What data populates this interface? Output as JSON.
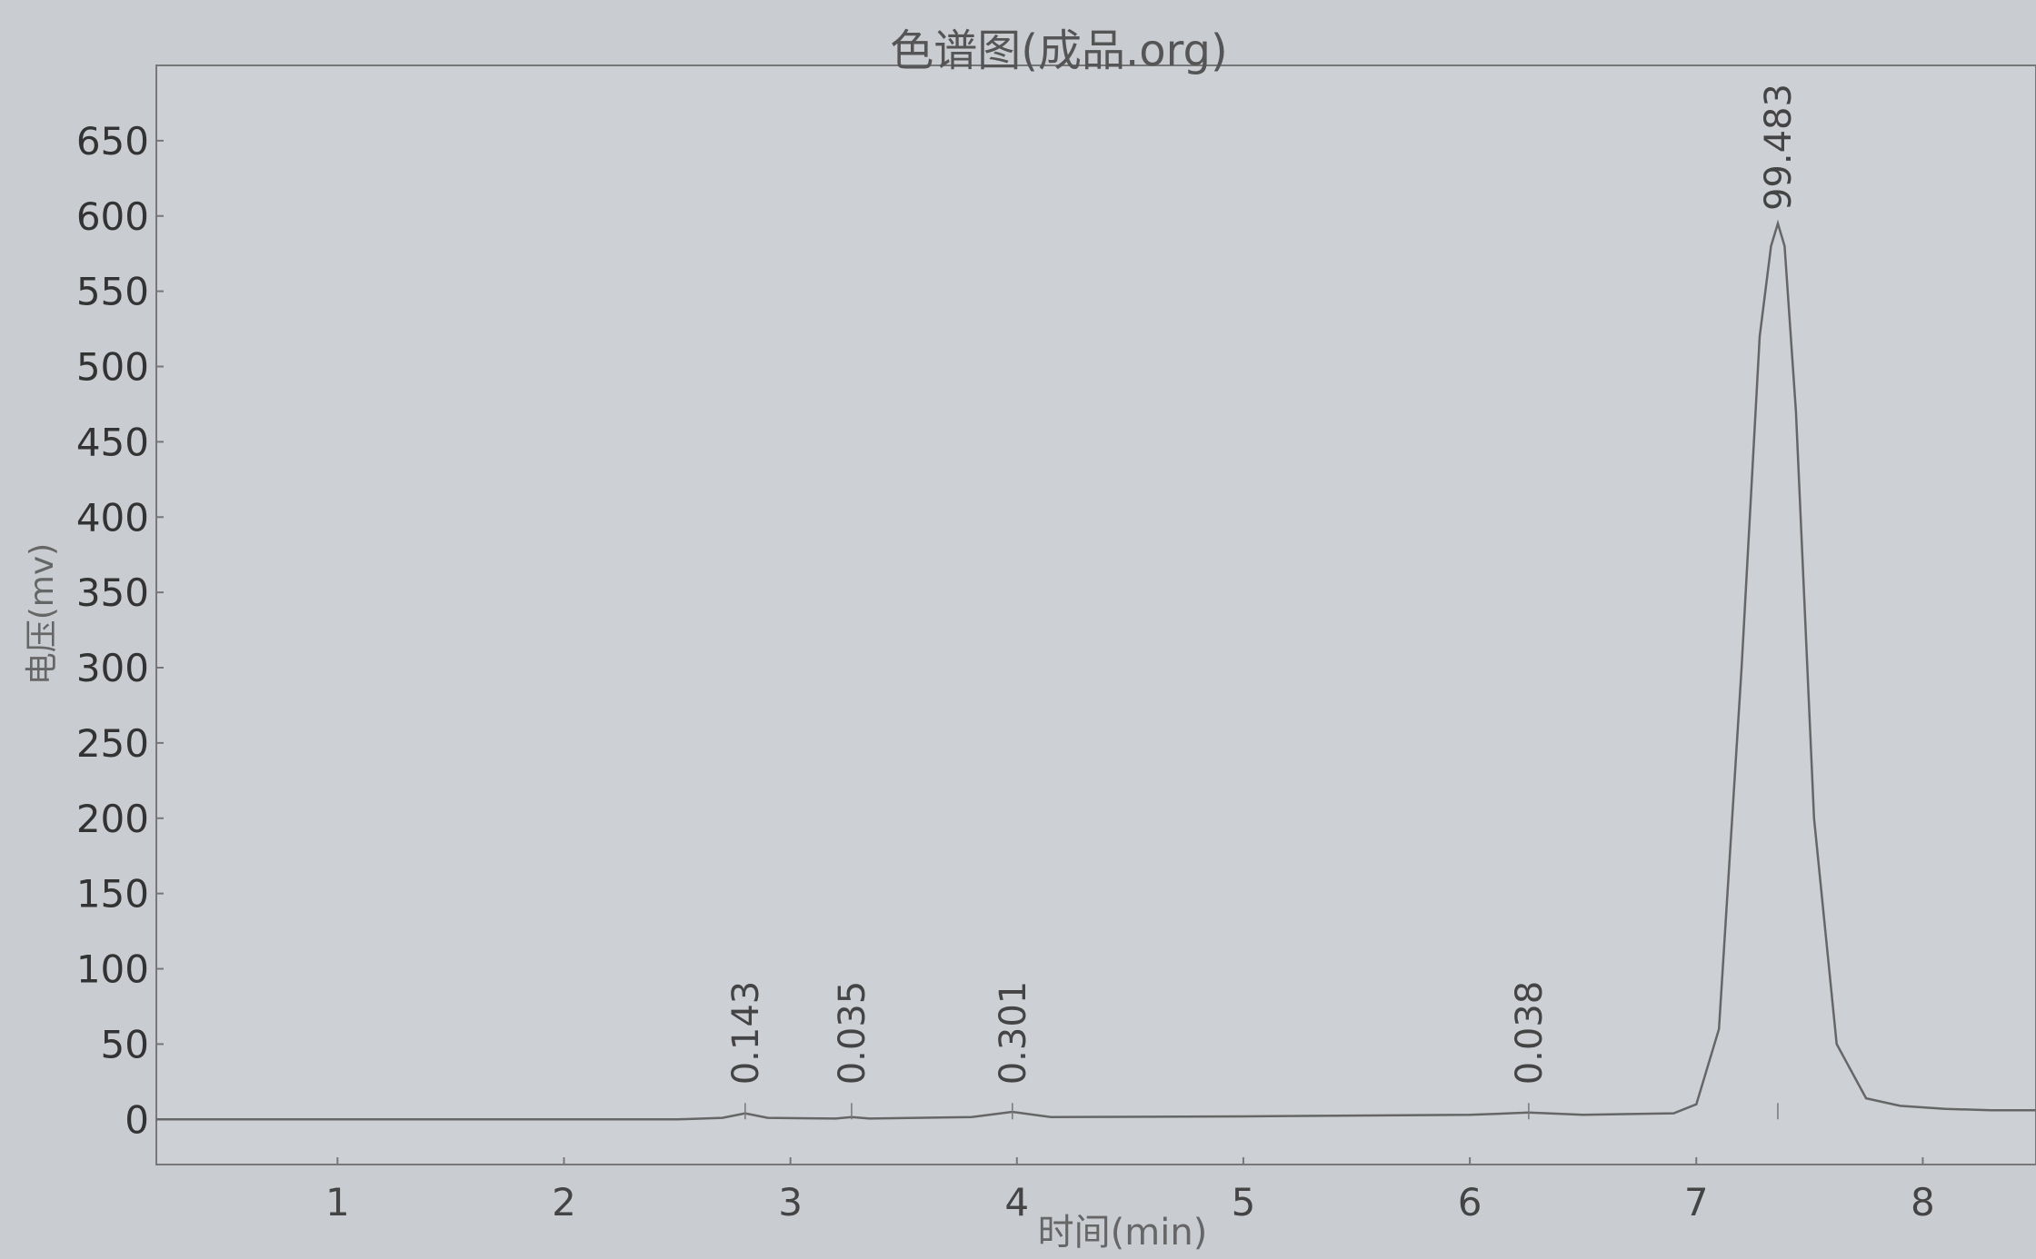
{
  "chart_data": {
    "type": "line",
    "title": "色谱图(成品.org)",
    "xlabel": "时间(min)",
    "ylabel": "电压(mv)",
    "xlim": [
      0.2,
      8.5
    ],
    "ylim": [
      -30,
      700
    ],
    "x_ticks": [
      1,
      2,
      3,
      4,
      5,
      6,
      7,
      8
    ],
    "y_ticks": [
      0,
      50,
      100,
      150,
      200,
      250,
      300,
      350,
      400,
      450,
      500,
      550,
      600,
      650
    ],
    "grid": false,
    "peaks": [
      {
        "rt": 2.8,
        "height": 4,
        "width": 0.03,
        "label": "0.143"
      },
      {
        "rt": 3.27,
        "height": 1.5,
        "width": 0.025,
        "label": "0.035"
      },
      {
        "rt": 3.98,
        "height": 5,
        "width": 0.06,
        "label": "0.301"
      },
      {
        "rt": 6.26,
        "height": 1.5,
        "width": 0.025,
        "label": "0.038"
      },
      {
        "rt": 7.36,
        "height": 595,
        "width": 0.085,
        "label": "99.483"
      }
    ],
    "series": [
      {
        "x": [
          0.2,
          2.5,
          2.7,
          2.8,
          2.9,
          3.2,
          3.27,
          3.35,
          3.8,
          3.98,
          4.15,
          5.0,
          6.0,
          6.26,
          6.5,
          6.9,
          7.0,
          7.1,
          7.2,
          7.28,
          7.33,
          7.36,
          7.39,
          7.44,
          7.52,
          7.62,
          7.75,
          7.9,
          8.1,
          8.3,
          8.5
        ],
        "y": [
          0,
          0,
          1,
          4,
          1,
          0.5,
          1.5,
          0.5,
          1.5,
          5,
          1.5,
          2,
          3,
          4.5,
          3,
          4,
          10,
          60,
          300,
          520,
          580,
          595,
          580,
          470,
          200,
          50,
          14,
          9,
          7,
          6,
          6
        ]
      }
    ]
  }
}
